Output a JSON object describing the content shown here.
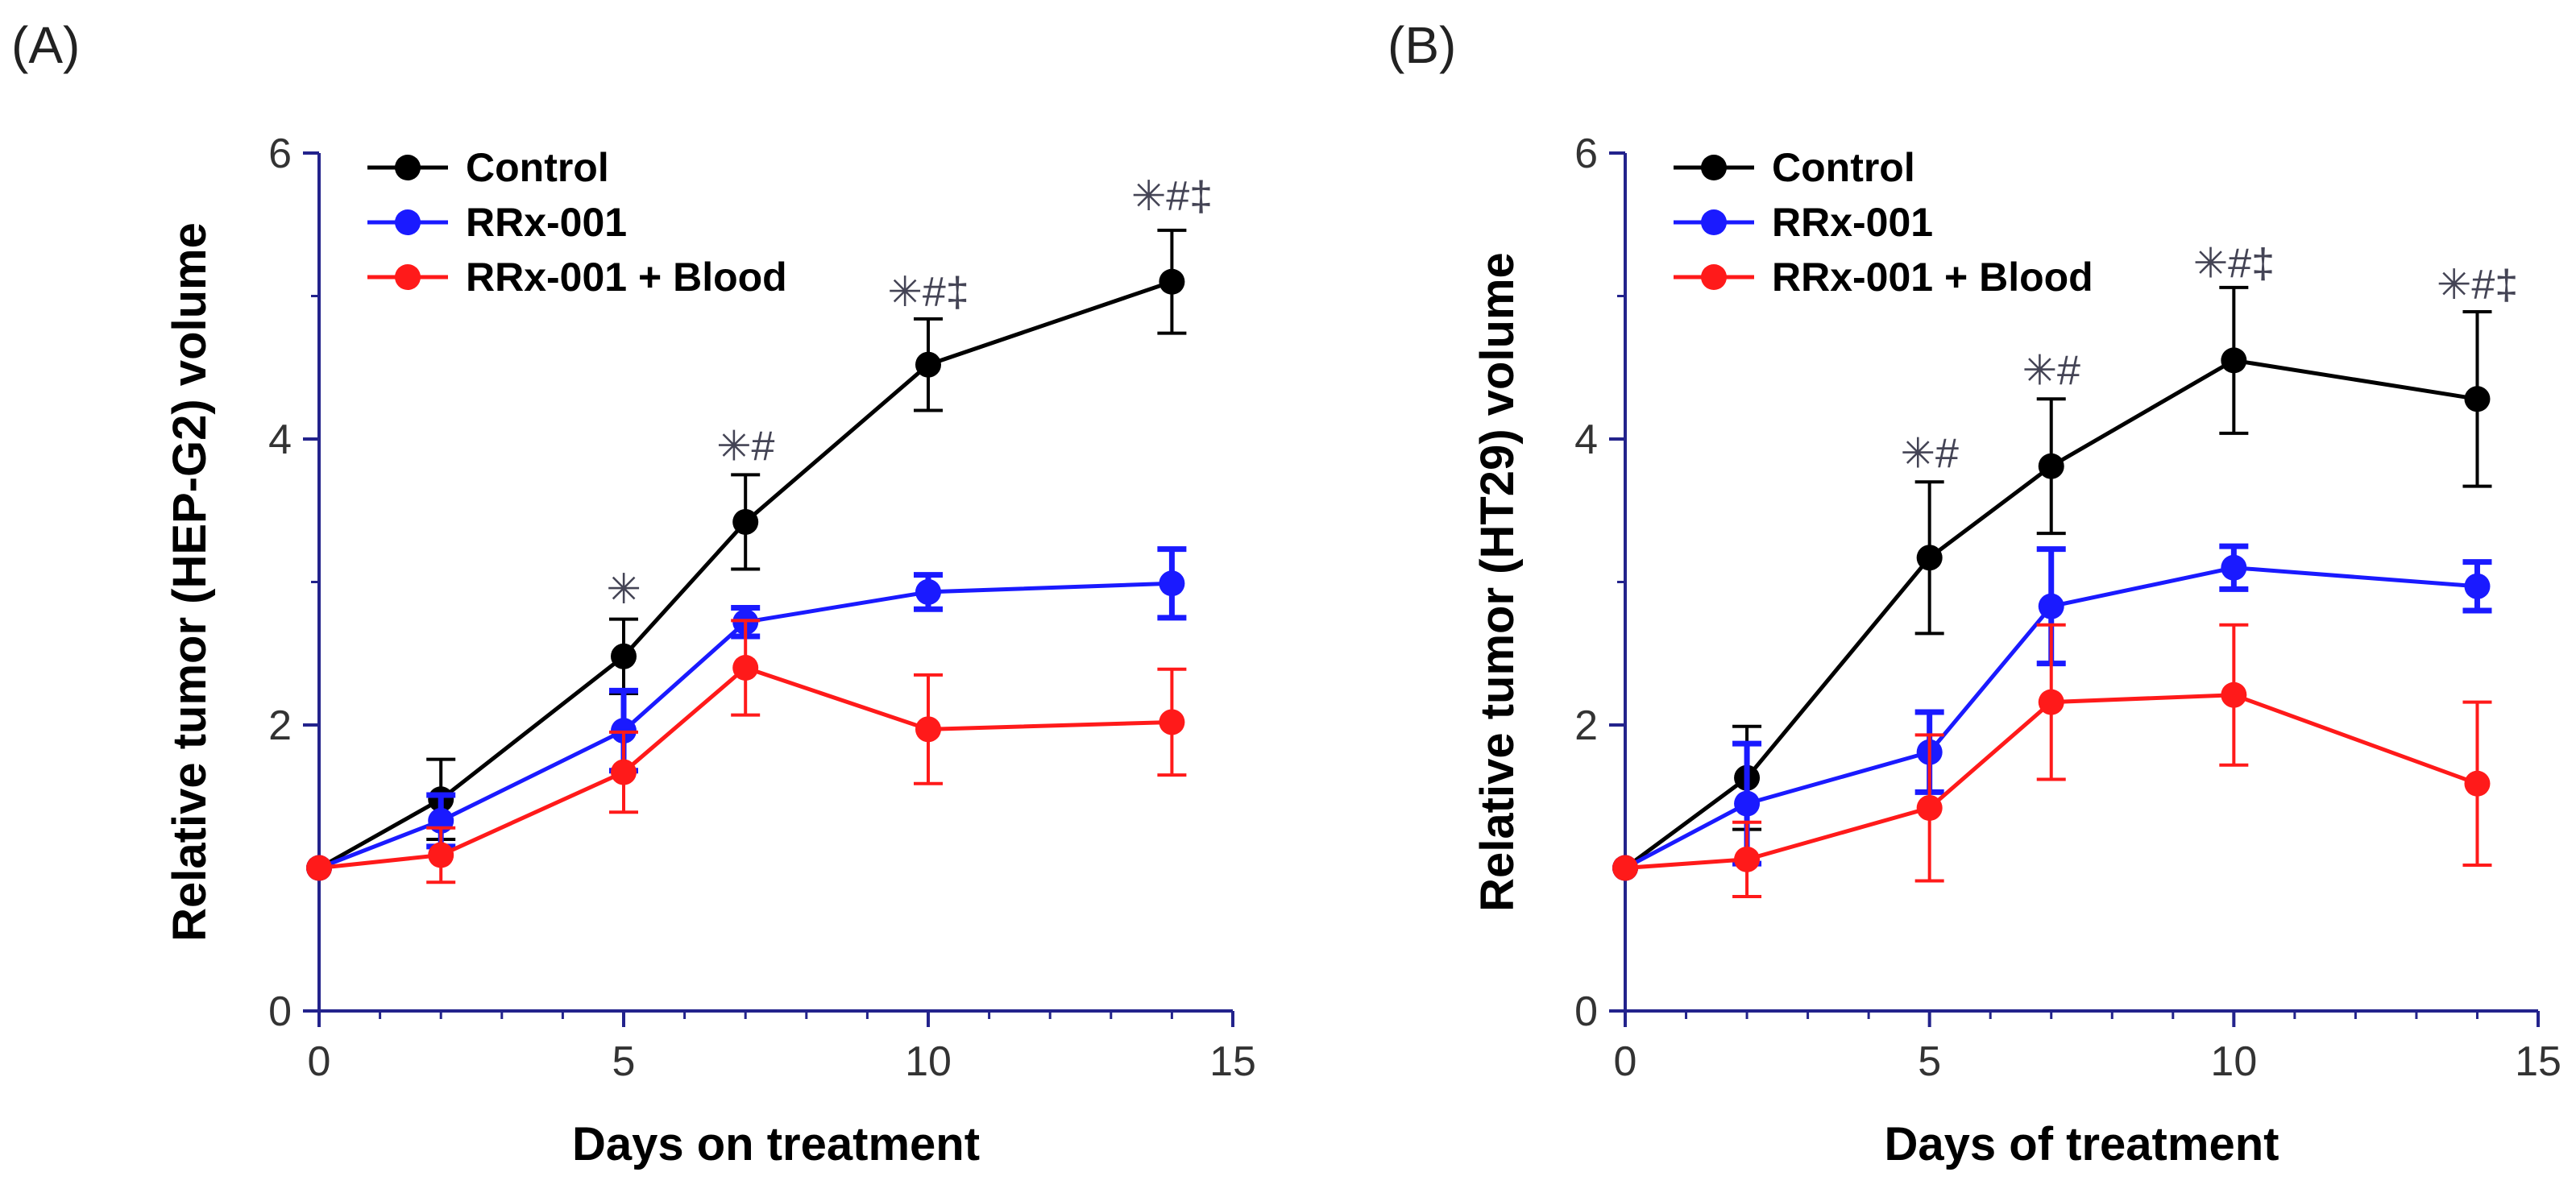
{
  "panels": [
    {
      "panel_label": "(A)",
      "chart_data": {
        "type": "line",
        "title": "",
        "xlabel": "Days on treatment",
        "ylabel": "Relative tumor (HEP-G2) volume",
        "xlim": [
          0,
          15
        ],
        "ylim": [
          0,
          6
        ],
        "x_ticks": [
          0,
          5,
          10,
          15
        ],
        "y_ticks": [
          0,
          2,
          4,
          6
        ],
        "grid": false,
        "legend_position": "top-left",
        "series": [
          {
            "name": "Control",
            "color": "#000000",
            "x": [
              0,
              2,
              5,
              7,
              10,
              14
            ],
            "values": [
              1.0,
              1.48,
              2.48,
              3.42,
              4.52,
              5.1
            ],
            "errors": [
              0,
              0.28,
              0.26,
              0.33,
              0.32,
              0.36
            ]
          },
          {
            "name": "RRx-001",
            "color": "#1a1aff",
            "x": [
              0,
              2,
              5,
              7,
              10,
              14
            ],
            "values": [
              1.0,
              1.33,
              1.96,
              2.72,
              2.93,
              2.99
            ],
            "errors": [
              0,
              0.18,
              0.28,
              0.1,
              0.12,
              0.24
            ]
          },
          {
            "name": "RRx-001 + Blood",
            "color": "#ff1a1a",
            "x": [
              0,
              2,
              5,
              7,
              10,
              14
            ],
            "values": [
              1.0,
              1.09,
              1.67,
              2.4,
              1.97,
              2.02
            ],
            "errors": [
              0,
              0.19,
              0.28,
              0.33,
              0.38,
              0.37
            ]
          }
        ],
        "annotations": [
          {
            "x": 5,
            "y": 2.85,
            "text": "✳"
          },
          {
            "x": 7,
            "y": 3.85,
            "text": "✳#"
          },
          {
            "x": 10,
            "y": 4.93,
            "text": "✳#‡"
          },
          {
            "x": 14,
            "y": 5.6,
            "text": "✳#‡"
          }
        ]
      }
    },
    {
      "panel_label": "(B)",
      "chart_data": {
        "type": "line",
        "title": "",
        "xlabel": "Days of treatment",
        "ylabel": "Relative tumor (HT29) volume",
        "xlim": [
          0,
          15
        ],
        "ylim": [
          0,
          6
        ],
        "x_ticks": [
          0,
          5,
          10,
          15
        ],
        "y_ticks": [
          0,
          2,
          4,
          6
        ],
        "grid": false,
        "legend_position": "top-left",
        "series": [
          {
            "name": "Control",
            "color": "#000000",
            "x": [
              0,
              2,
              5,
              7,
              10,
              14
            ],
            "values": [
              1.0,
              1.63,
              3.17,
              3.81,
              4.55,
              4.28
            ],
            "errors": [
              0,
              0.36,
              0.53,
              0.47,
              0.51,
              0.61
            ]
          },
          {
            "name": "RRx-001",
            "color": "#1a1aff",
            "x": [
              0,
              2,
              5,
              7,
              10,
              14
            ],
            "values": [
              1.0,
              1.45,
              1.81,
              2.83,
              3.1,
              2.97
            ],
            "errors": [
              0,
              0.42,
              0.28,
              0.4,
              0.15,
              0.17
            ]
          },
          {
            "name": "RRx-001 + Blood",
            "color": "#ff1a1a",
            "x": [
              0,
              2,
              5,
              7,
              10,
              14
            ],
            "values": [
              1.0,
              1.06,
              1.42,
              2.16,
              2.21,
              1.59
            ],
            "errors": [
              0,
              0.26,
              0.51,
              0.54,
              0.49,
              0.57
            ]
          }
        ],
        "annotations": [
          {
            "x": 5,
            "y": 3.8,
            "text": "✳#"
          },
          {
            "x": 7,
            "y": 4.38,
            "text": "✳#"
          },
          {
            "x": 10,
            "y": 5.13,
            "text": "✳#‡"
          },
          {
            "x": 14,
            "y": 4.98,
            "text": "✳#‡"
          }
        ]
      }
    }
  ]
}
